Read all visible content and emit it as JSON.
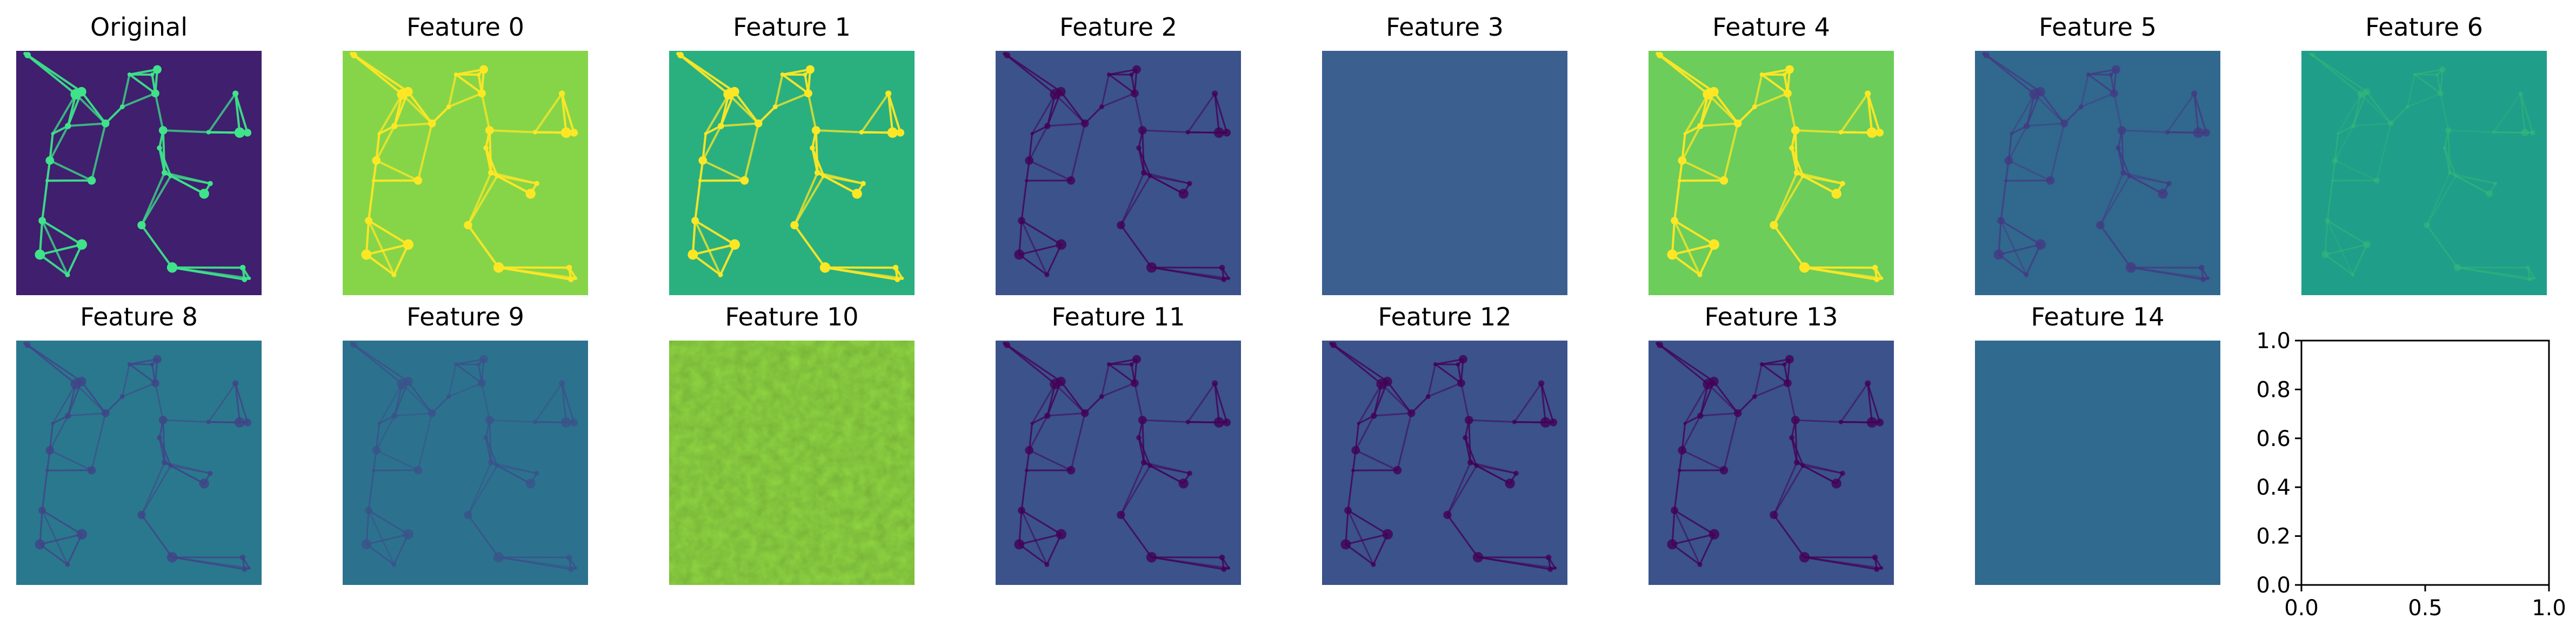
{
  "chart_data": {
    "type": "image_grid",
    "layout": {
      "rows": 2,
      "cols": 8
    },
    "panels": [
      {
        "title": "Original",
        "colormap": "viridis",
        "appearance": "cosmic-web",
        "base": "#3f1f6e",
        "accent": "#3ee38a"
      },
      {
        "title": "Feature 0",
        "colormap": "viridis",
        "appearance": "cosmic-web",
        "base": "#86d549",
        "accent": "#fde725"
      },
      {
        "title": "Feature 1",
        "colormap": "viridis",
        "appearance": "cosmic-web",
        "base": "#2ab07f",
        "accent": "#fde725"
      },
      {
        "title": "Feature 2",
        "colormap": "viridis",
        "appearance": "dark-filaments",
        "base": "#3b528b",
        "accent": "#440154"
      },
      {
        "title": "Feature 3",
        "colormap": "viridis",
        "appearance": "flat",
        "base": "#3b5f8f",
        "accent": "#3b5f8f"
      },
      {
        "title": "Feature 4",
        "colormap": "viridis",
        "appearance": "cosmic-web",
        "base": "#6ccd5a",
        "accent": "#fde725"
      },
      {
        "title": "Feature 5",
        "colormap": "viridis",
        "appearance": "dark-filaments",
        "base": "#31688e",
        "accent": "#443a83"
      },
      {
        "title": "Feature 6",
        "colormap": "viridis",
        "appearance": "soft-web",
        "base": "#1f9e89",
        "accent": "#35b779"
      },
      {
        "title": "Feature 8",
        "colormap": "viridis",
        "appearance": "dark-filaments",
        "base": "#2a788e",
        "accent": "#414487"
      },
      {
        "title": "Feature 9",
        "colormap": "viridis",
        "appearance": "dark-filaments",
        "base": "#2c728e",
        "accent": "#3b528b"
      },
      {
        "title": "Feature 10",
        "colormap": "viridis",
        "appearance": "flat-textured",
        "base": "#90d743",
        "accent": "#b5de2b"
      },
      {
        "title": "Feature 11",
        "colormap": "viridis",
        "appearance": "dark-filaments",
        "base": "#3b528b",
        "accent": "#440154"
      },
      {
        "title": "Feature 12",
        "colormap": "viridis",
        "appearance": "dark-filaments",
        "base": "#3b528b",
        "accent": "#440154"
      },
      {
        "title": "Feature 13",
        "colormap": "viridis",
        "appearance": "dark-filaments",
        "base": "#3b528b",
        "accent": "#440154"
      },
      {
        "title": "Feature 14",
        "colormap": "viridis",
        "appearance": "flat",
        "base": "#306a8e",
        "accent": "#306a8e"
      }
    ],
    "empty_axes": {
      "type": "line",
      "xlim": [
        0.0,
        1.0
      ],
      "ylim": [
        0.0,
        1.0
      ],
      "xticks": [
        "0.0",
        "0.5",
        "1.0"
      ],
      "yticks": [
        "0.0",
        "0.2",
        "0.4",
        "0.6",
        "0.8",
        "1.0"
      ],
      "grid": false,
      "series": []
    }
  }
}
